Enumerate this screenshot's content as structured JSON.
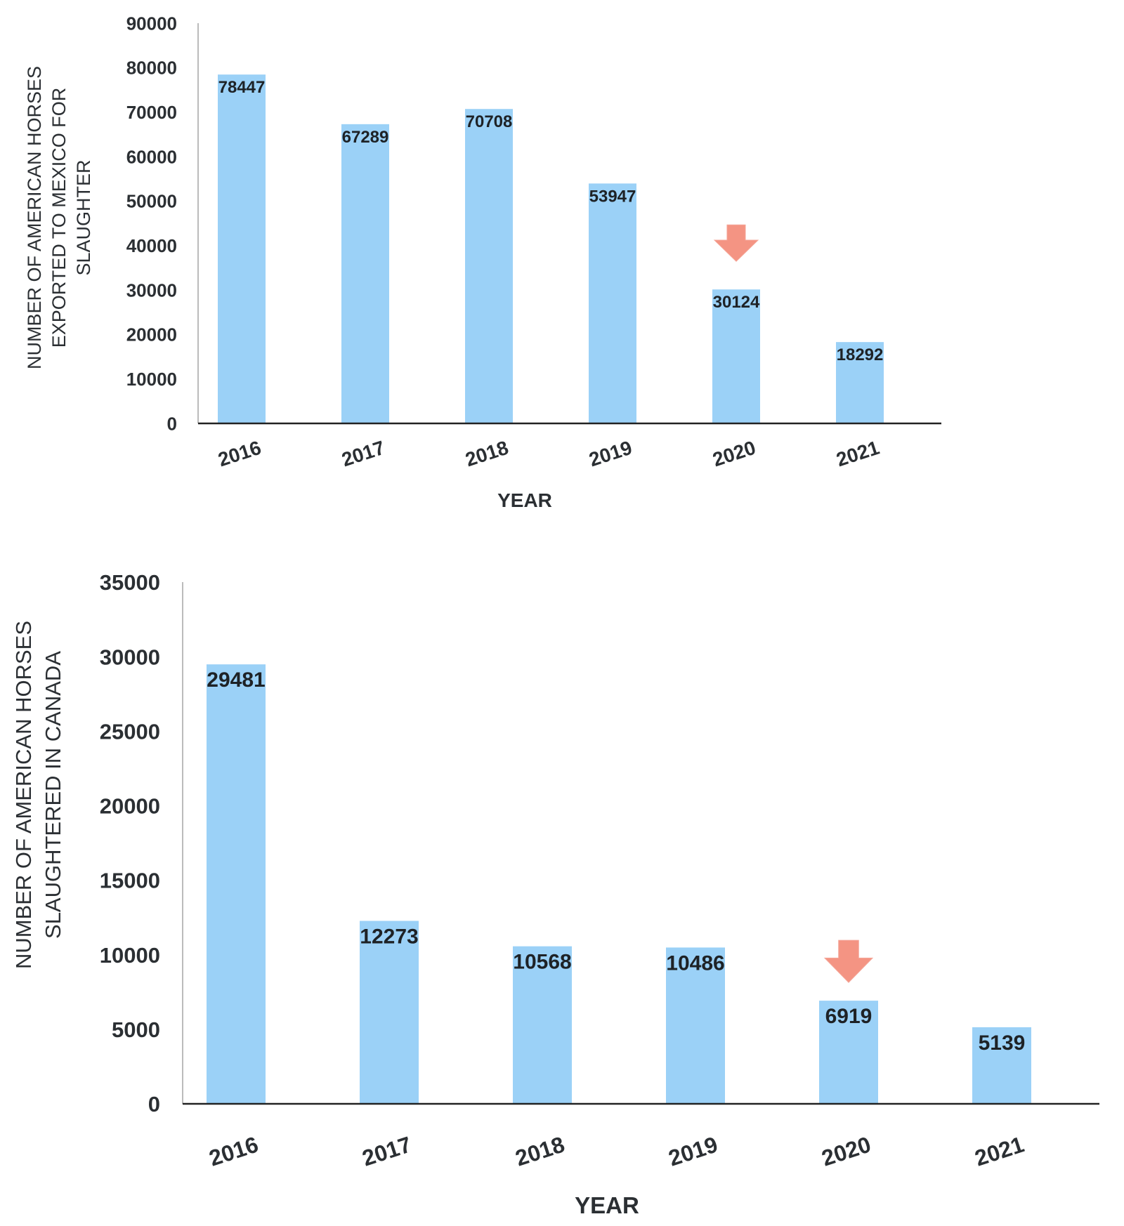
{
  "chart_data": [
    {
      "id": "top",
      "type": "bar",
      "categories": [
        "2016",
        "2017",
        "2018",
        "2019",
        "2020",
        "2021"
      ],
      "values": [
        78447,
        67289,
        70708,
        53947,
        30124,
        18292
      ],
      "data_labels": [
        "78447",
        "67289",
        "70708",
        "53947",
        "30124",
        "18292"
      ],
      "xlabel": "YEAR",
      "ylabel_lines": [
        "NUMBER OF AMERICAN HORSES",
        "EXPORTED TO MEXICO FOR",
        "SLAUGHTER"
      ],
      "ylim": [
        0,
        90000
      ],
      "yticks": [
        0,
        10000,
        20000,
        30000,
        40000,
        50000,
        60000,
        70000,
        80000,
        90000
      ],
      "grid": false,
      "bar_color": "#9bd1f7",
      "highlight_index": 4,
      "highlight_color": "#f49483",
      "arrow_icon": "down-arrow-icon"
    },
    {
      "id": "bottom",
      "type": "bar",
      "categories": [
        "2016",
        "2017",
        "2018",
        "2019",
        "2020",
        "2021"
      ],
      "values": [
        29481,
        12273,
        10568,
        10486,
        6919,
        5139
      ],
      "data_labels": [
        "29481",
        "12273",
        "10568",
        "10486",
        "6919",
        "5139"
      ],
      "xlabel": "YEAR",
      "ylabel_lines": [
        "NUMBER OF AMERICAN HORSES",
        "SLAUGHTERED IN CANADA"
      ],
      "ylim": [
        0,
        35000
      ],
      "yticks": [
        0,
        5000,
        10000,
        15000,
        20000,
        25000,
        30000,
        35000
      ],
      "grid": false,
      "bar_color": "#9bd1f7",
      "highlight_index": 4,
      "highlight_color": "#f49483",
      "arrow_icon": "down-arrow-icon"
    }
  ]
}
